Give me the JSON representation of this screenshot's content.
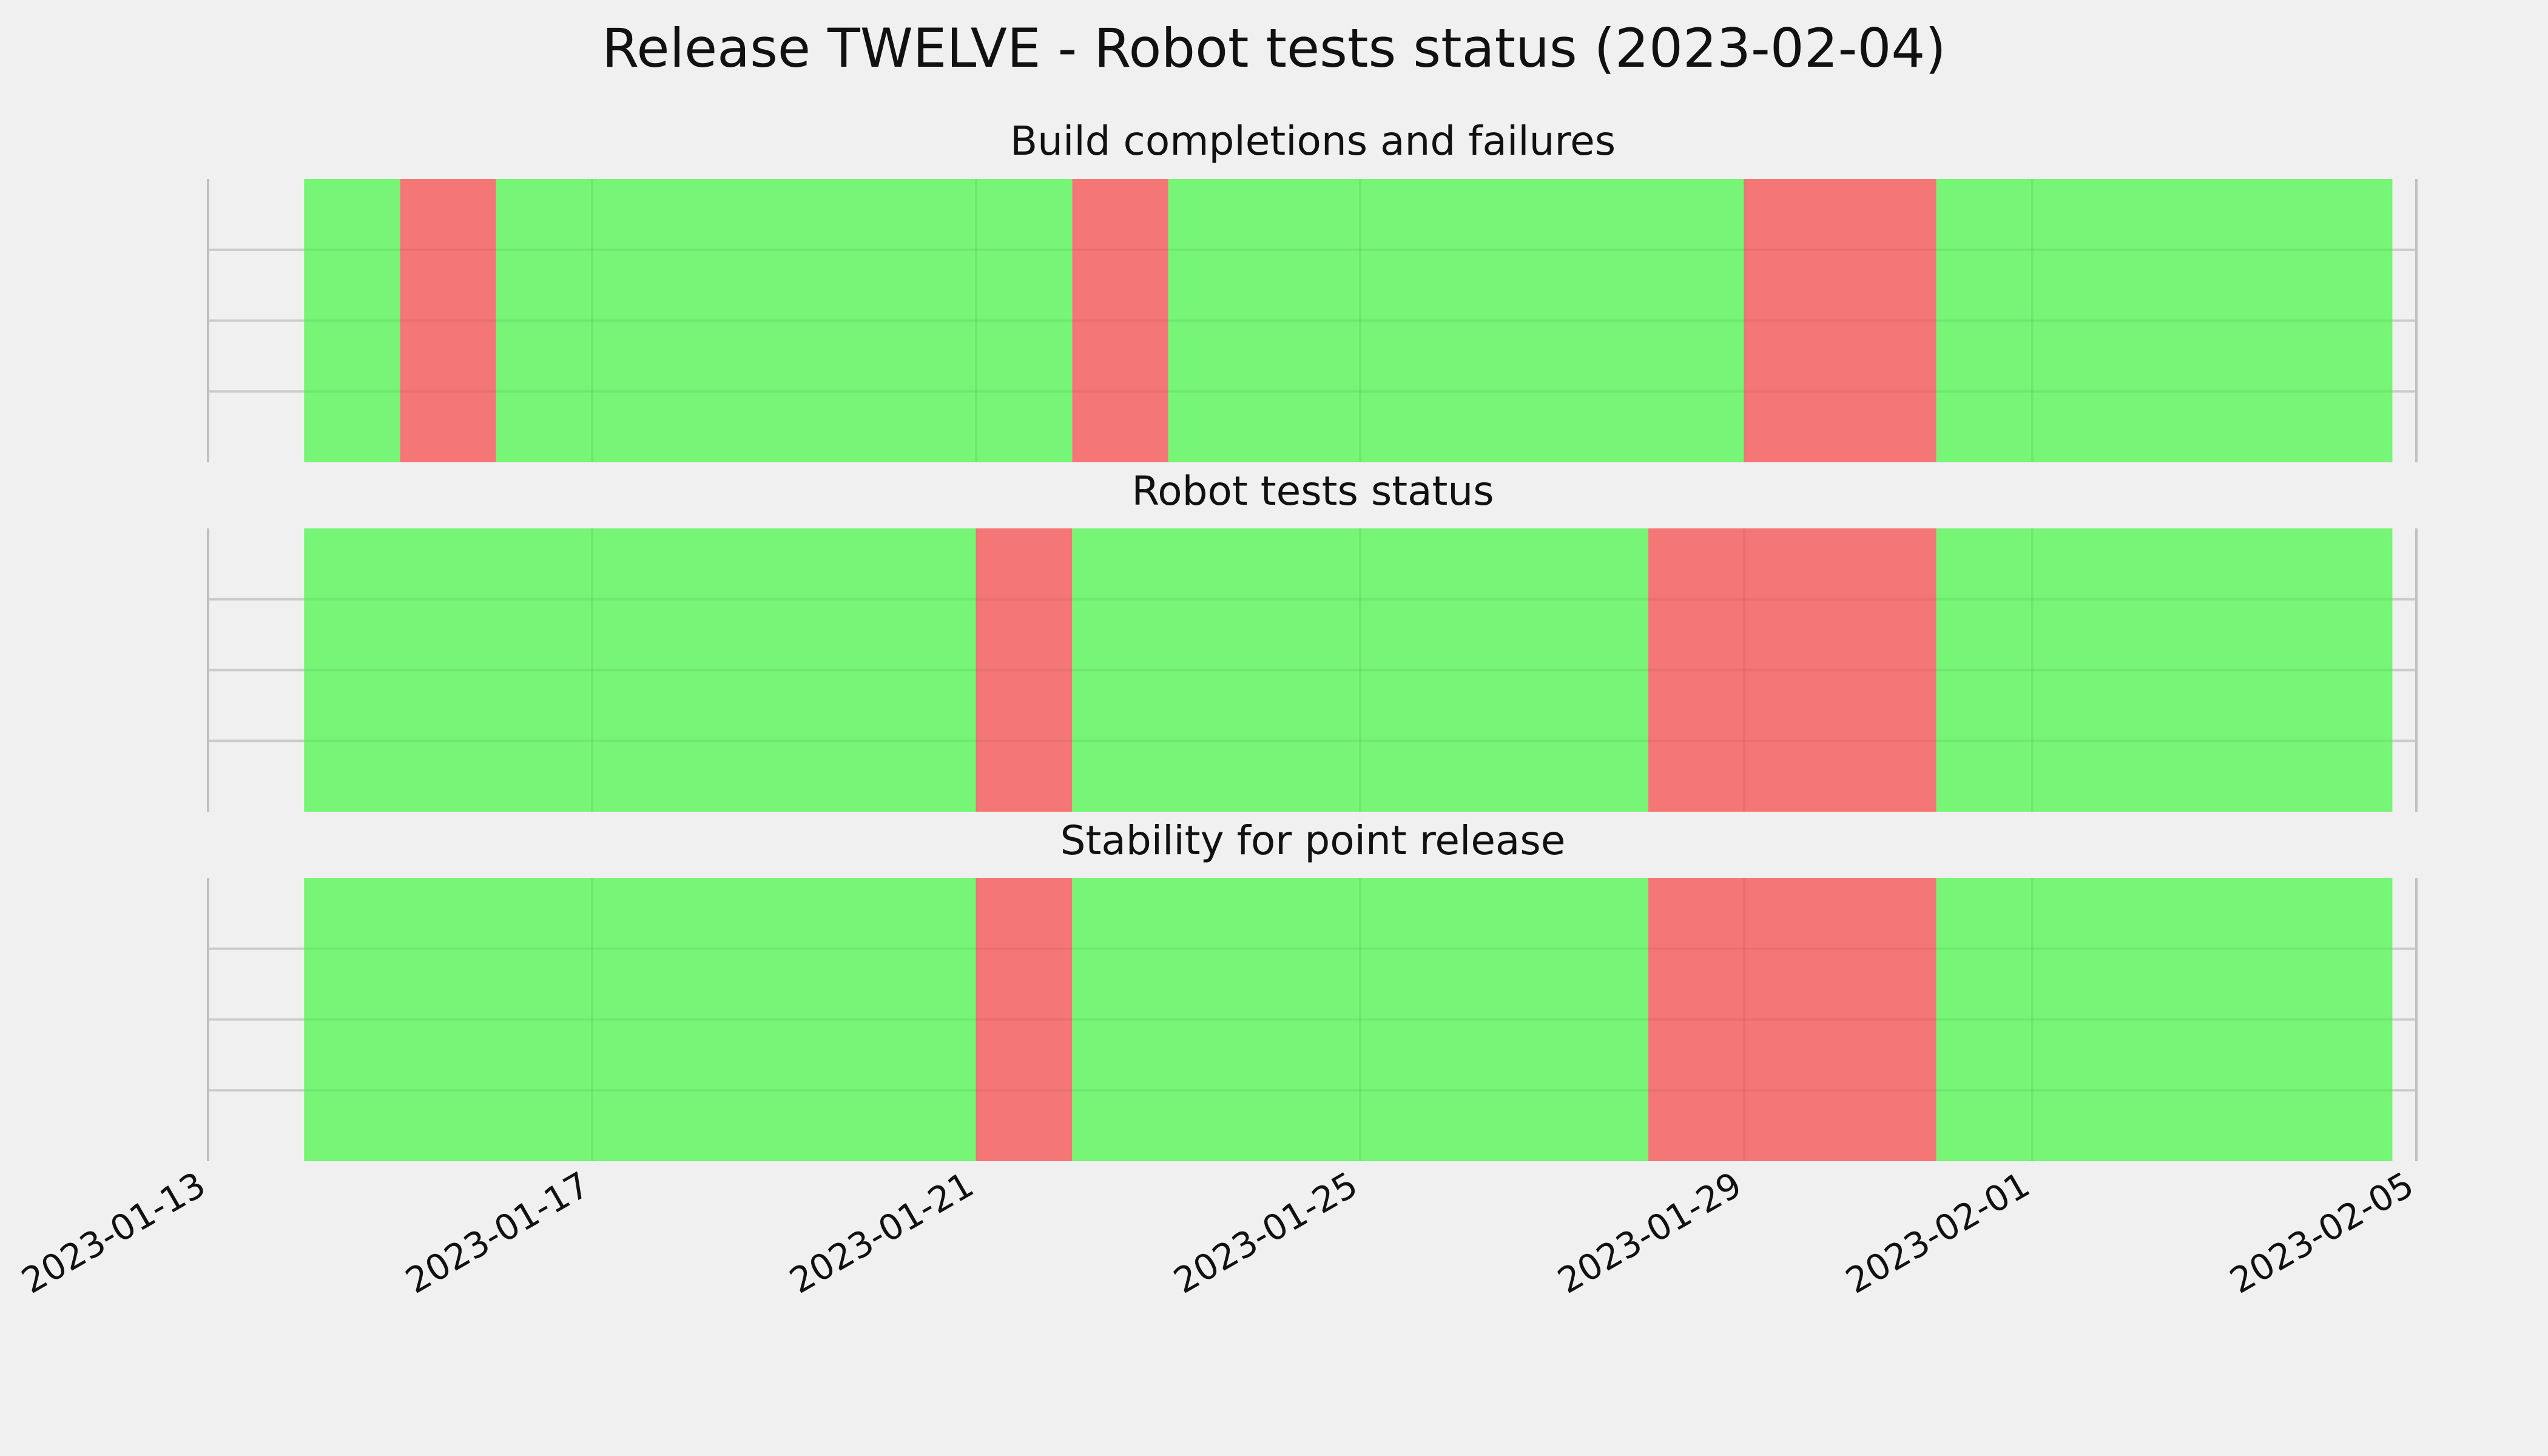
{
  "chart_data": {
    "type": "timeline",
    "title": "Release TWELVE - Robot tests status (2023-02-04)",
    "x_axis": {
      "type": "date",
      "range": [
        "2023-01-13",
        "2023-02-05"
      ],
      "tick_labels": [
        "2023-01-13",
        "2023-01-17",
        "2023-01-21",
        "2023-01-25",
        "2023-01-29",
        "2023-02-01",
        "2023-02-05"
      ]
    },
    "panels": [
      {
        "title": "Build completions and failures",
        "segments": [
          {
            "start": "2023-01-14",
            "end": "2023-01-15",
            "status": "pass"
          },
          {
            "start": "2023-01-15",
            "end": "2023-01-16",
            "status": "fail"
          },
          {
            "start": "2023-01-16",
            "end": "2023-01-22",
            "status": "pass"
          },
          {
            "start": "2023-01-22",
            "end": "2023-01-23",
            "status": "fail"
          },
          {
            "start": "2023-01-23",
            "end": "2023-01-29",
            "status": "pass"
          },
          {
            "start": "2023-01-29",
            "end": "2023-01-31",
            "status": "fail"
          },
          {
            "start": "2023-01-31",
            "end": "2023-02-04 18:00",
            "status": "pass"
          }
        ]
      },
      {
        "title": "Robot tests status",
        "segments": [
          {
            "start": "2023-01-14",
            "end": "2023-01-21",
            "status": "pass"
          },
          {
            "start": "2023-01-21",
            "end": "2023-01-22",
            "status": "fail"
          },
          {
            "start": "2023-01-22",
            "end": "2023-01-28",
            "status": "pass"
          },
          {
            "start": "2023-01-28",
            "end": "2023-01-31",
            "status": "fail"
          },
          {
            "start": "2023-01-31",
            "end": "2023-02-04 18:00",
            "status": "pass"
          }
        ]
      },
      {
        "title": "Stability for point release",
        "segments": [
          {
            "start": "2023-01-14",
            "end": "2023-01-21",
            "status": "pass"
          },
          {
            "start": "2023-01-21",
            "end": "2023-01-22",
            "status": "fail"
          },
          {
            "start": "2023-01-22",
            "end": "2023-01-28",
            "status": "pass"
          },
          {
            "start": "2023-01-28",
            "end": "2023-01-31",
            "status": "fail"
          },
          {
            "start": "2023-01-31",
            "end": "2023-02-04 18:00",
            "status": "pass"
          }
        ]
      }
    ],
    "colors": {
      "pass": "#76f576",
      "fail": "#f57676",
      "grid": "#cbcbcb",
      "background": "#f0f0f0"
    },
    "grid": true,
    "legend": "none"
  }
}
